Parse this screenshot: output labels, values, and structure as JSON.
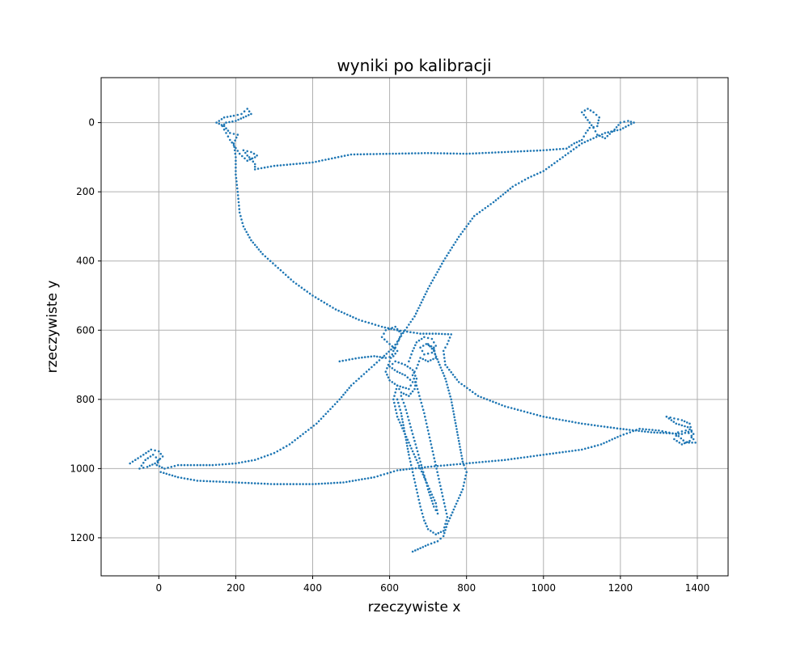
{
  "chart_data": {
    "type": "scatter",
    "title": "wyniki po kalibracji",
    "xlabel": "rzeczywiste x",
    "ylabel": "rzeczywiste y",
    "xlim": [
      -150,
      1480
    ],
    "ylim": [
      1310,
      -130
    ],
    "y_inverted": true,
    "grid": true,
    "xticks": [
      0,
      200,
      400,
      600,
      800,
      1000,
      1200,
      1400
    ],
    "yticks": [
      0,
      200,
      400,
      600,
      800,
      1000,
      1200
    ],
    "color": "#1f77b4",
    "paths": [
      [
        [
          -75,
          985
        ],
        [
          -40,
          960
        ],
        [
          -20,
          945
        ],
        [
          0,
          950
        ],
        [
          10,
          965
        ],
        [
          -10,
          985
        ],
        [
          -30,
          995
        ],
        [
          -50,
          1000
        ],
        [
          -35,
          975
        ],
        [
          -15,
          960
        ],
        [
          0,
          975
        ],
        [
          -5,
          990
        ],
        [
          15,
          1000
        ],
        [
          50,
          990
        ],
        [
          100,
          990
        ],
        [
          140,
          990
        ],
        [
          200,
          985
        ],
        [
          250,
          975
        ],
        [
          300,
          955
        ],
        [
          340,
          930
        ],
        [
          375,
          900
        ],
        [
          410,
          870
        ],
        [
          440,
          835
        ],
        [
          470,
          800
        ],
        [
          500,
          760
        ],
        [
          540,
          720
        ],
        [
          580,
          680
        ],
        [
          610,
          650
        ],
        [
          640,
          600
        ],
        [
          665,
          560
        ],
        [
          700,
          480
        ],
        [
          740,
          400
        ],
        [
          780,
          330
        ],
        [
          820,
          270
        ],
        [
          870,
          230
        ],
        [
          920,
          185
        ],
        [
          960,
          160
        ],
        [
          1000,
          140
        ],
        [
          1050,
          100
        ],
        [
          1100,
          60
        ],
        [
          1160,
          30
        ],
        [
          1200,
          20
        ],
        [
          1235,
          0
        ],
        [
          1220,
          -5
        ],
        [
          1200,
          0
        ],
        [
          1185,
          20
        ],
        [
          1160,
          45
        ],
        [
          1140,
          35
        ],
        [
          1130,
          15
        ],
        [
          1120,
          0
        ],
        [
          1110,
          -15
        ],
        [
          1100,
          -30
        ],
        [
          1115,
          -40
        ],
        [
          1130,
          -30
        ],
        [
          1145,
          -15
        ],
        [
          1140,
          10
        ],
        [
          1120,
          15
        ],
        [
          1110,
          30
        ],
        [
          1100,
          50
        ],
        [
          1080,
          60
        ],
        [
          1060,
          75
        ],
        [
          1000,
          80
        ],
        [
          900,
          85
        ],
        [
          800,
          90
        ],
        [
          700,
          88
        ],
        [
          600,
          90
        ],
        [
          500,
          92
        ],
        [
          400,
          115
        ],
        [
          300,
          125
        ],
        [
          250,
          135
        ],
        [
          250,
          120
        ],
        [
          240,
          105
        ],
        [
          230,
          95
        ],
        [
          220,
          80
        ],
        [
          240,
          85
        ],
        [
          255,
          95
        ],
        [
          250,
          100
        ],
        [
          230,
          110
        ],
        [
          210,
          90
        ],
        [
          195,
          65
        ],
        [
          185,
          50
        ],
        [
          175,
          30
        ],
        [
          165,
          10
        ],
        [
          175,
          0
        ],
        [
          200,
          -5
        ],
        [
          220,
          -15
        ],
        [
          240,
          -25
        ],
        [
          230,
          -40
        ],
        [
          215,
          -25
        ],
        [
          195,
          -20
        ],
        [
          170,
          -15
        ],
        [
          150,
          0
        ],
        [
          170,
          10
        ],
        [
          185,
          30
        ],
        [
          205,
          35
        ],
        [
          195,
          60
        ],
        [
          200,
          100
        ],
        [
          200,
          150
        ],
        [
          205,
          200
        ],
        [
          210,
          260
        ],
        [
          220,
          300
        ],
        [
          240,
          340
        ],
        [
          270,
          380
        ],
        [
          310,
          420
        ],
        [
          350,
          460
        ],
        [
          400,
          500
        ],
        [
          460,
          540
        ],
        [
          520,
          570
        ],
        [
          580,
          590
        ],
        [
          620,
          600
        ],
        [
          680,
          610
        ],
        [
          720,
          610
        ],
        [
          760,
          612
        ],
        [
          750,
          640
        ],
        [
          740,
          660
        ],
        [
          745,
          700
        ],
        [
          780,
          750
        ],
        [
          830,
          790
        ],
        [
          900,
          820
        ],
        [
          1000,
          850
        ],
        [
          1100,
          870
        ],
        [
          1200,
          885
        ],
        [
          1280,
          895
        ],
        [
          1360,
          900
        ],
        [
          1385,
          890
        ],
        [
          1380,
          870
        ],
        [
          1360,
          860
        ],
        [
          1340,
          855
        ],
        [
          1320,
          850
        ],
        [
          1345,
          870
        ],
        [
          1375,
          880
        ],
        [
          1390,
          900
        ],
        [
          1380,
          920
        ],
        [
          1360,
          930
        ],
        [
          1340,
          915
        ],
        [
          1350,
          895
        ],
        [
          1370,
          890
        ],
        [
          1385,
          905
        ],
        [
          1395,
          925
        ],
        [
          1370,
          925
        ],
        [
          1345,
          900
        ],
        [
          1300,
          890
        ],
        [
          1250,
          885
        ],
        [
          1200,
          905
        ],
        [
          1150,
          930
        ],
        [
          1100,
          945
        ],
        [
          1000,
          960
        ],
        [
          900,
          975
        ],
        [
          800,
          985
        ],
        [
          700,
          995
        ],
        [
          620,
          1005
        ],
        [
          560,
          1025
        ],
        [
          480,
          1040
        ],
        [
          400,
          1045
        ],
        [
          300,
          1045
        ],
        [
          200,
          1040
        ],
        [
          100,
          1035
        ],
        [
          50,
          1025
        ],
        [
          20,
          1015
        ],
        [
          5,
          1010
        ]
      ],
      [
        [
          470,
          690
        ],
        [
          520,
          680
        ],
        [
          560,
          675
        ],
        [
          590,
          680
        ],
        [
          610,
          675
        ],
        [
          620,
          660
        ],
        [
          600,
          640
        ],
        [
          580,
          620
        ],
        [
          590,
          600
        ],
        [
          615,
          590
        ],
        [
          630,
          610
        ],
        [
          620,
          640
        ],
        [
          610,
          660
        ],
        [
          600,
          690
        ],
        [
          590,
          720
        ],
        [
          600,
          745
        ],
        [
          620,
          760
        ],
        [
          650,
          770
        ],
        [
          660,
          750
        ],
        [
          640,
          730
        ],
        [
          620,
          720
        ],
        [
          600,
          705
        ],
        [
          615,
          690
        ],
        [
          640,
          700
        ],
        [
          660,
          715
        ],
        [
          670,
          740
        ],
        [
          665,
          770
        ],
        [
          650,
          790
        ],
        [
          630,
          780
        ],
        [
          620,
          760
        ],
        [
          610,
          800
        ],
        [
          620,
          850
        ],
        [
          640,
          900
        ],
        [
          660,
          950
        ],
        [
          680,
          1000
        ],
        [
          700,
          1050
        ],
        [
          720,
          1100
        ],
        [
          725,
          1130
        ],
        [
          715,
          1110
        ],
        [
          700,
          1060
        ],
        [
          690,
          1020
        ],
        [
          680,
          980
        ],
        [
          670,
          940
        ],
        [
          660,
          900
        ],
        [
          650,
          860
        ],
        [
          640,
          820
        ],
        [
          630,
          790
        ]
      ],
      [
        [
          650,
          690
        ],
        [
          660,
          660
        ],
        [
          670,
          635
        ],
        [
          690,
          620
        ],
        [
          710,
          625
        ],
        [
          720,
          645
        ],
        [
          710,
          665
        ],
        [
          690,
          670
        ],
        [
          680,
          650
        ],
        [
          695,
          640
        ],
        [
          715,
          650
        ],
        [
          720,
          680
        ],
        [
          700,
          690
        ],
        [
          680,
          680
        ],
        [
          670,
          710
        ],
        [
          660,
          730
        ],
        [
          670,
          760
        ],
        [
          680,
          800
        ],
        [
          690,
          840
        ],
        [
          700,
          890
        ],
        [
          710,
          940
        ],
        [
          720,
          990
        ],
        [
          730,
          1040
        ],
        [
          740,
          1090
        ],
        [
          750,
          1140
        ],
        [
          740,
          1180
        ],
        [
          720,
          1190
        ],
        [
          700,
          1175
        ],
        [
          690,
          1150
        ],
        [
          680,
          1110
        ],
        [
          670,
          1060
        ],
        [
          660,
          1010
        ],
        [
          650,
          960
        ],
        [
          640,
          900
        ],
        [
          630,
          840
        ],
        [
          620,
          800
        ]
      ],
      [
        [
          700,
          640
        ],
        [
          715,
          660
        ],
        [
          730,
          700
        ],
        [
          745,
          740
        ],
        [
          760,
          800
        ],
        [
          770,
          860
        ],
        [
          780,
          920
        ],
        [
          790,
          980
        ],
        [
          800,
          1010
        ],
        [
          790,
          1060
        ],
        [
          770,
          1110
        ],
        [
          750,
          1160
        ],
        [
          740,
          1195
        ],
        [
          725,
          1210
        ],
        [
          700,
          1220
        ],
        [
          680,
          1230
        ],
        [
          660,
          1240
        ]
      ]
    ]
  }
}
